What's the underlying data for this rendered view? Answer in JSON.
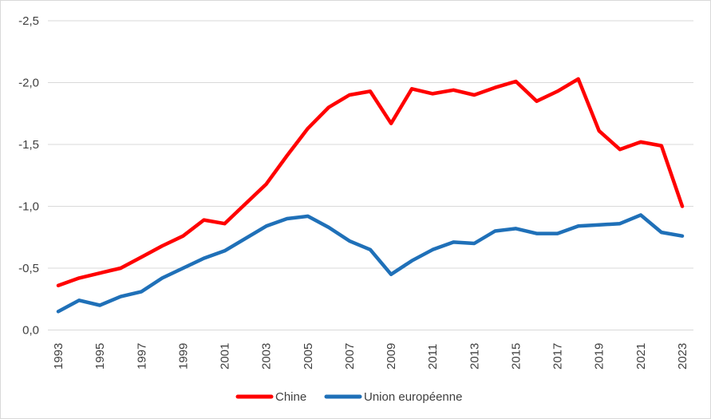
{
  "chart_data": {
    "type": "line",
    "title": "",
    "xlabel": "",
    "ylabel": "",
    "x": [
      1993,
      1994,
      1995,
      1996,
      1997,
      1998,
      1999,
      2000,
      2001,
      2002,
      2003,
      2004,
      2005,
      2006,
      2007,
      2008,
      2009,
      2010,
      2011,
      2012,
      2013,
      2014,
      2015,
      2016,
      2017,
      2018,
      2019,
      2020,
      2021,
      2022,
      2023
    ],
    "series": [
      {
        "name": "Chine",
        "color": "#ff0000",
        "values": [
          -0.36,
          -0.42,
          -0.46,
          -0.5,
          -0.59,
          -0.68,
          -0.76,
          -0.89,
          -0.86,
          -1.02,
          -1.18,
          -1.41,
          -1.63,
          -1.8,
          -1.9,
          -1.93,
          -1.67,
          -1.95,
          -1.91,
          -1.94,
          -1.9,
          -1.96,
          -2.01,
          -1.85,
          -1.93,
          -2.03,
          -1.61,
          -1.46,
          -1.52,
          -1.49,
          -1.0
        ]
      },
      {
        "name": "Union européenne",
        "color": "#1f70b8",
        "values": [
          -0.15,
          -0.24,
          -0.2,
          -0.27,
          -0.31,
          -0.42,
          -0.5,
          -0.58,
          -0.64,
          -0.74,
          -0.84,
          -0.9,
          -0.92,
          -0.83,
          -0.72,
          -0.65,
          -0.45,
          -0.56,
          -0.65,
          -0.71,
          -0.7,
          -0.8,
          -0.82,
          -0.78,
          -0.78,
          -0.84,
          -0.85,
          -0.86,
          -0.93,
          -0.79,
          -0.76
        ]
      }
    ],
    "y_axis": {
      "inverted": true,
      "ylim": [
        0.0,
        -2.5
      ],
      "tick_values": [
        -2.5,
        -2.0,
        -1.5,
        -1.0,
        -0.5,
        0.0
      ],
      "tick_labels": [
        "-2,5",
        "-2,0",
        "-1,5",
        "-1,0",
        "-0,5",
        "0,0"
      ]
    },
    "x_axis": {
      "tick_labels": [
        "1993",
        "1995",
        "1997",
        "1999",
        "2001",
        "2003",
        "2005",
        "2007",
        "2009",
        "2011",
        "2013",
        "2015",
        "2017",
        "2019",
        "2021",
        "2023"
      ],
      "label_rotation_deg": -90
    },
    "grid": true,
    "legend_position": "bottom",
    "colors": {
      "background": "#ffffff",
      "gridline": "#d9d9d9",
      "text": "#404040",
      "frame_border": "#d9d9d9"
    }
  }
}
